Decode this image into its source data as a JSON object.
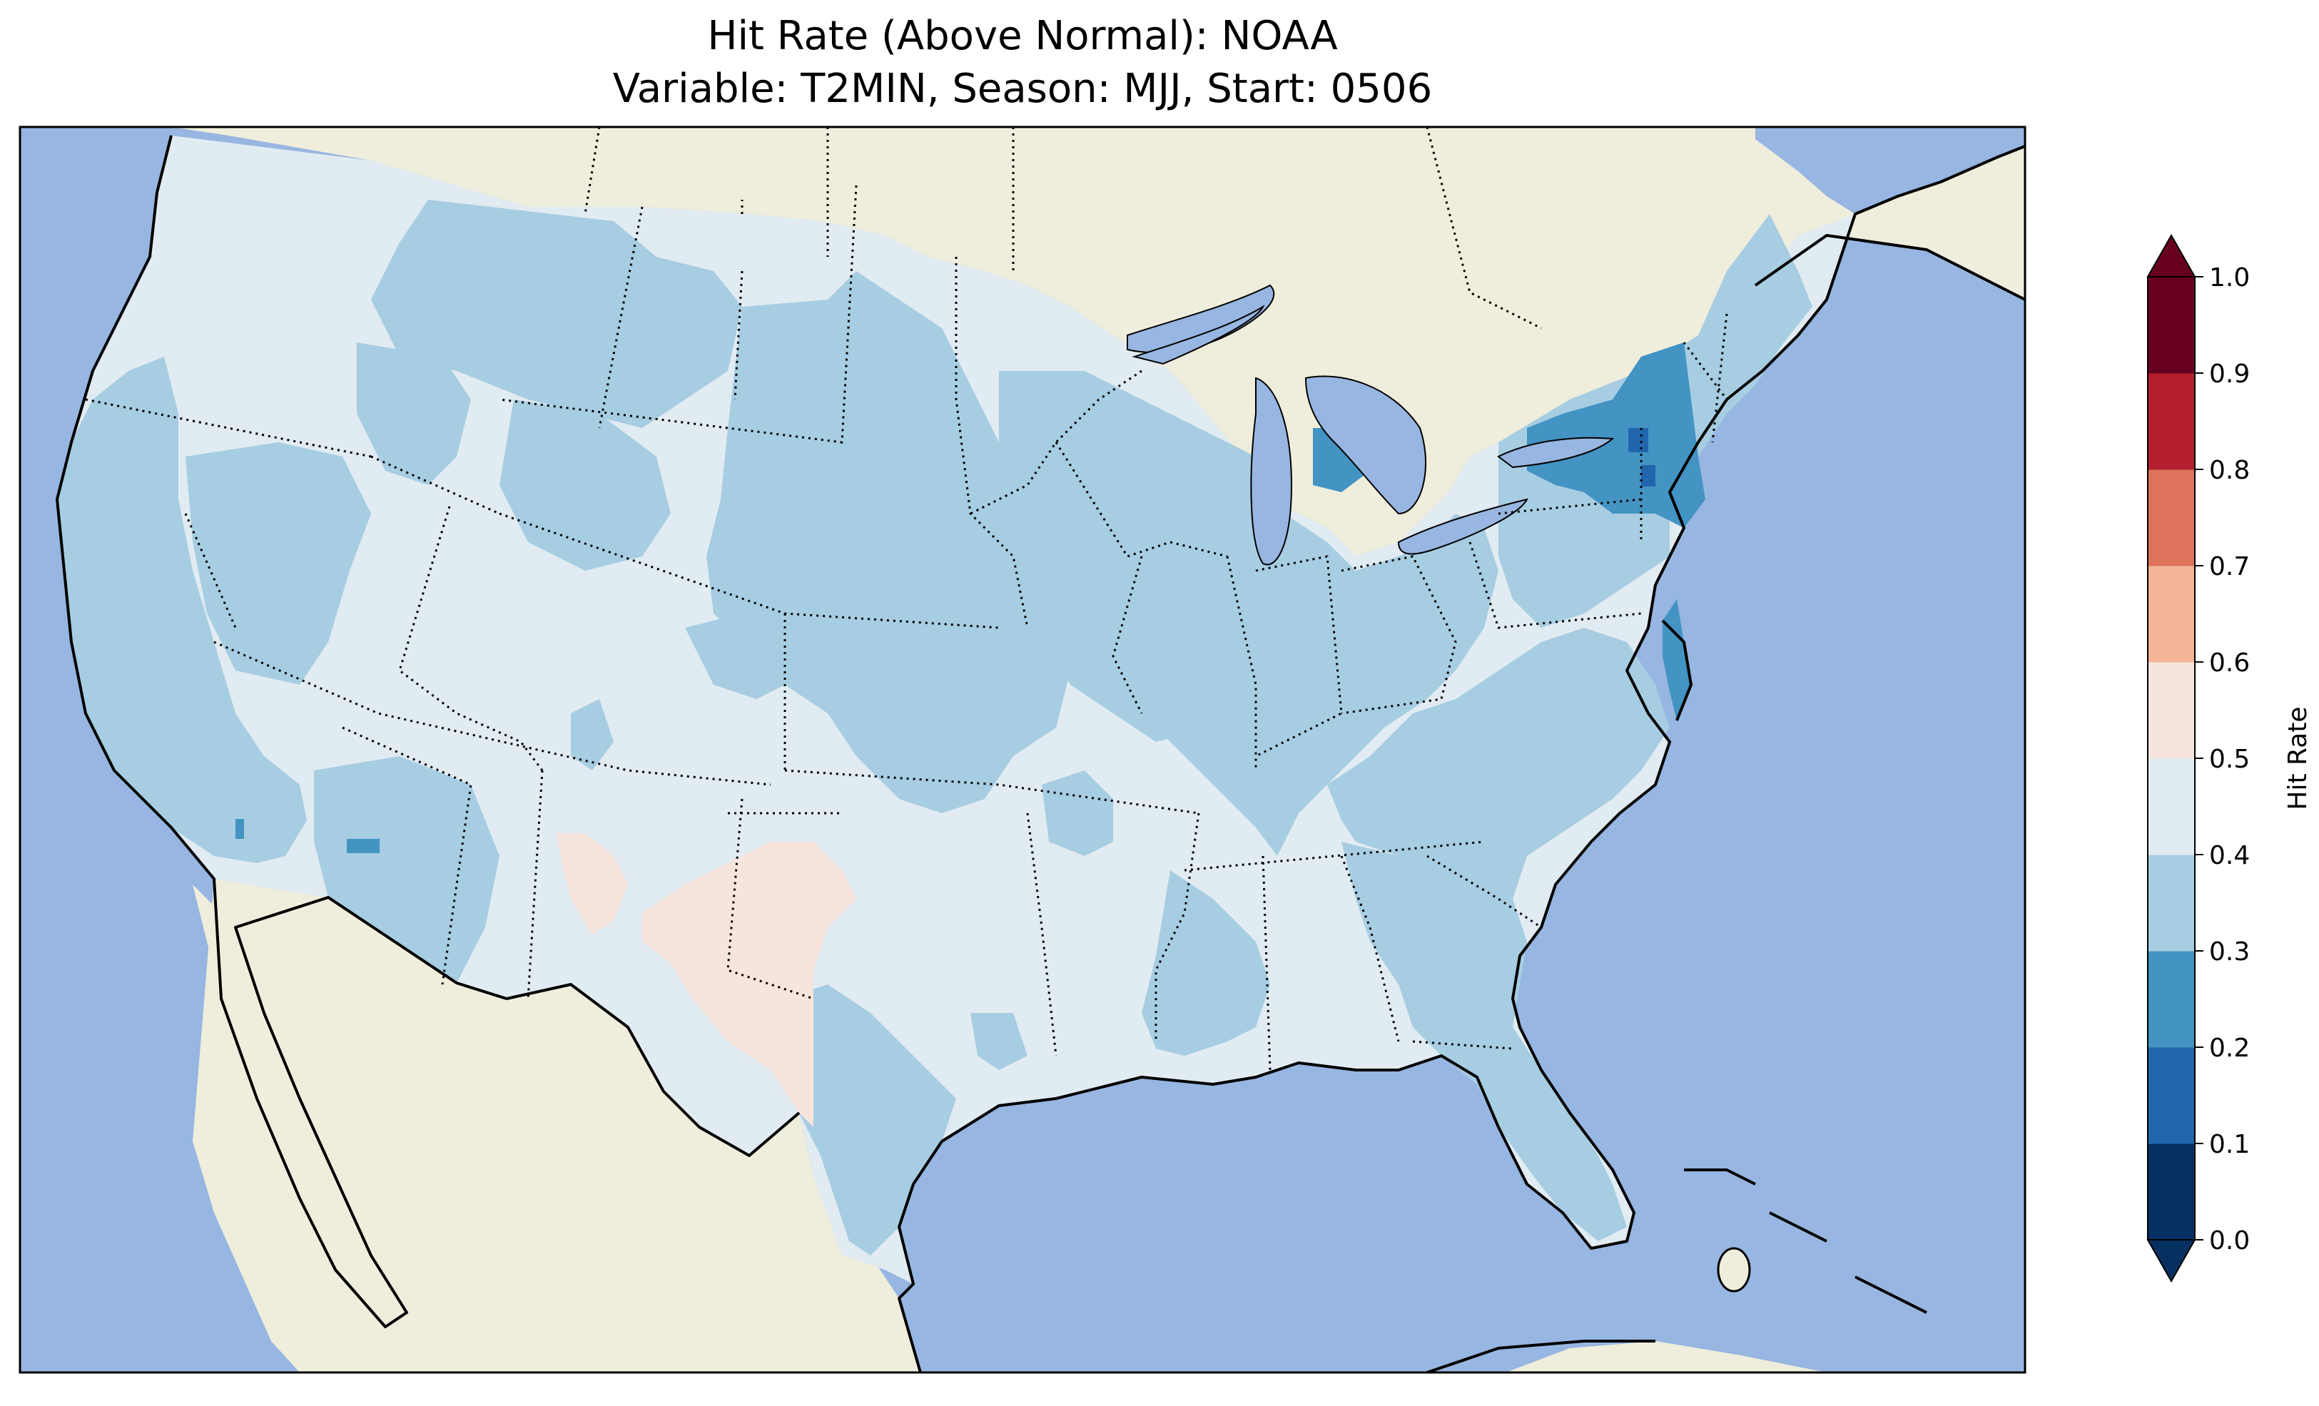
{
  "title_line1": "Hit Rate (Above Normal): NOAA",
  "title_line2": "Variable: T2MIN, Season: MJJ, Start: 0506",
  "colors": {
    "ocean": "#97b6e1",
    "land": "#efeddc",
    "coastline": "#000000",
    "lakes": "#97b6e1"
  },
  "colorbar": {
    "label": "Hit Rate",
    "extend": "both",
    "ticks": [
      "0.0",
      "0.1",
      "0.2",
      "0.3",
      "0.4",
      "0.5",
      "0.6",
      "0.7",
      "0.8",
      "0.9",
      "1.0"
    ],
    "bins": [
      {
        "range": "0.0-0.1",
        "color": "#053061"
      },
      {
        "range": "0.1-0.2",
        "color": "#2166ac"
      },
      {
        "range": "0.2-0.3",
        "color": "#4393c3"
      },
      {
        "range": "0.3-0.4",
        "color": "#a7cde2"
      },
      {
        "range": "0.4-0.5",
        "color": "#e1ebf2"
      },
      {
        "range": "0.5-0.6",
        "color": "#f7e4dc"
      },
      {
        "range": "0.6-0.7",
        "color": "#f4b598"
      },
      {
        "range": "0.7-0.8",
        "color": "#de725b"
      },
      {
        "range": "0.8-0.9",
        "color": "#b41f2e"
      },
      {
        "range": "0.9-1.0",
        "color": "#67001f"
      }
    ],
    "under_color": "#053061",
    "over_color": "#67001f"
  },
  "chart_data": {
    "type": "heatmap",
    "title": "Hit Rate (Above Normal): NOAA\nVariable: T2MIN, Season: MJJ, Start: 0506",
    "colorbar_label": "Hit Rate",
    "value_range": [
      0.0,
      1.0
    ],
    "bin_width": 0.1,
    "regions": [
      {
        "region": "Pacific Northwest / Great Basin / Rockies",
        "value_bin": "0.4-0.5"
      },
      {
        "region": "California / Arizona / Montana / Dakotas / Nebraska",
        "value_bin": "0.3-0.4"
      },
      {
        "region": "Upper Midwest / Ohio Valley / Southeast",
        "value_bin": "0.3-0.4"
      },
      {
        "region": "Texas / southern Plains / lower Mississippi",
        "value_bin": "0.4-0.5"
      },
      {
        "region": "West Texas / southeastern New Mexico",
        "value_bin": "0.5-0.6"
      },
      {
        "region": "New York / Lower Michigan / Delmarva",
        "value_bin": "0.2-0.3"
      },
      {
        "region": "central New York (small spot)",
        "value_bin": "0.1-0.2"
      }
    ]
  }
}
